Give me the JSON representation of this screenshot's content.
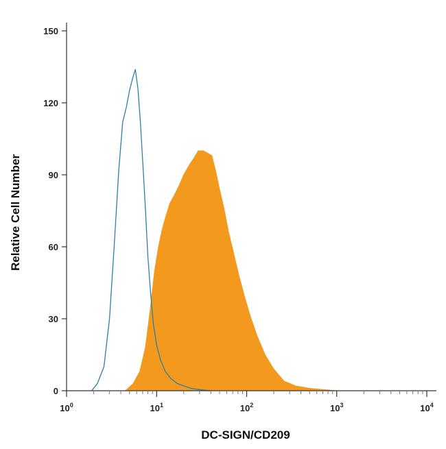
{
  "chart_data": {
    "type": "area",
    "title": "",
    "xlabel": "DC-SIGN/CD209",
    "ylabel": "Relative Cell Number",
    "x_scale": "log",
    "xlim": [
      1,
      10000
    ],
    "ylim": [
      0,
      150
    ],
    "x_ticks": [
      {
        "value": 1,
        "base": "10",
        "exp": "0"
      },
      {
        "value": 10,
        "base": "10",
        "exp": "1"
      },
      {
        "value": 100,
        "base": "10",
        "exp": "2"
      },
      {
        "value": 1000,
        "base": "10",
        "exp": "3"
      },
      {
        "value": 10000,
        "base": "10",
        "exp": "4"
      }
    ],
    "y_ticks": [
      "0",
      "30",
      "60",
      "90",
      "120",
      "150"
    ],
    "grid": false,
    "legend": "none",
    "series": [
      {
        "style": "outline",
        "color": "#2e7ea6",
        "x": [
          1.9,
          2.2,
          2.6,
          3.0,
          3.4,
          3.8,
          4.2,
          4.6,
          5.0,
          5.4,
          5.8,
          6.2,
          6.6,
          7.0,
          7.5,
          8.0,
          8.6,
          9.2,
          10.0,
          11.0,
          12.5,
          14.5,
          17.0,
          20.0,
          24.0,
          30.0,
          40.0
        ],
        "y": [
          0,
          3,
          10,
          30,
          62,
          92,
          112,
          118,
          125,
          130,
          134,
          126,
          112,
          96,
          76,
          56,
          40,
          28,
          19,
          13,
          8,
          5,
          3,
          2,
          1,
          0.5,
          0
        ]
      },
      {
        "style": "filled",
        "color": "#f39a1e",
        "x": [
          4.5,
          5.5,
          6.5,
          7.5,
          8.5,
          9.5,
          10.5,
          11.5,
          12.5,
          14.0,
          16.0,
          18.0,
          20.0,
          23.0,
          26.0,
          29.0,
          33.0,
          37.0,
          41.0,
          45.0,
          50.0,
          56.0,
          63.0,
          72.0,
          82.0,
          95.0,
          110.0,
          130.0,
          160.0,
          200.0,
          260.0,
          350.0,
          500.0,
          700.0,
          1000.0
        ],
        "y": [
          0,
          3,
          8,
          18,
          34,
          50,
          60,
          67,
          72,
          78,
          82,
          86,
          90,
          94,
          97,
          100,
          100,
          99,
          98,
          92,
          84,
          76,
          66,
          57,
          48,
          39,
          31,
          23,
          15,
          9,
          4,
          2,
          1,
          0.5,
          0
        ]
      }
    ]
  }
}
